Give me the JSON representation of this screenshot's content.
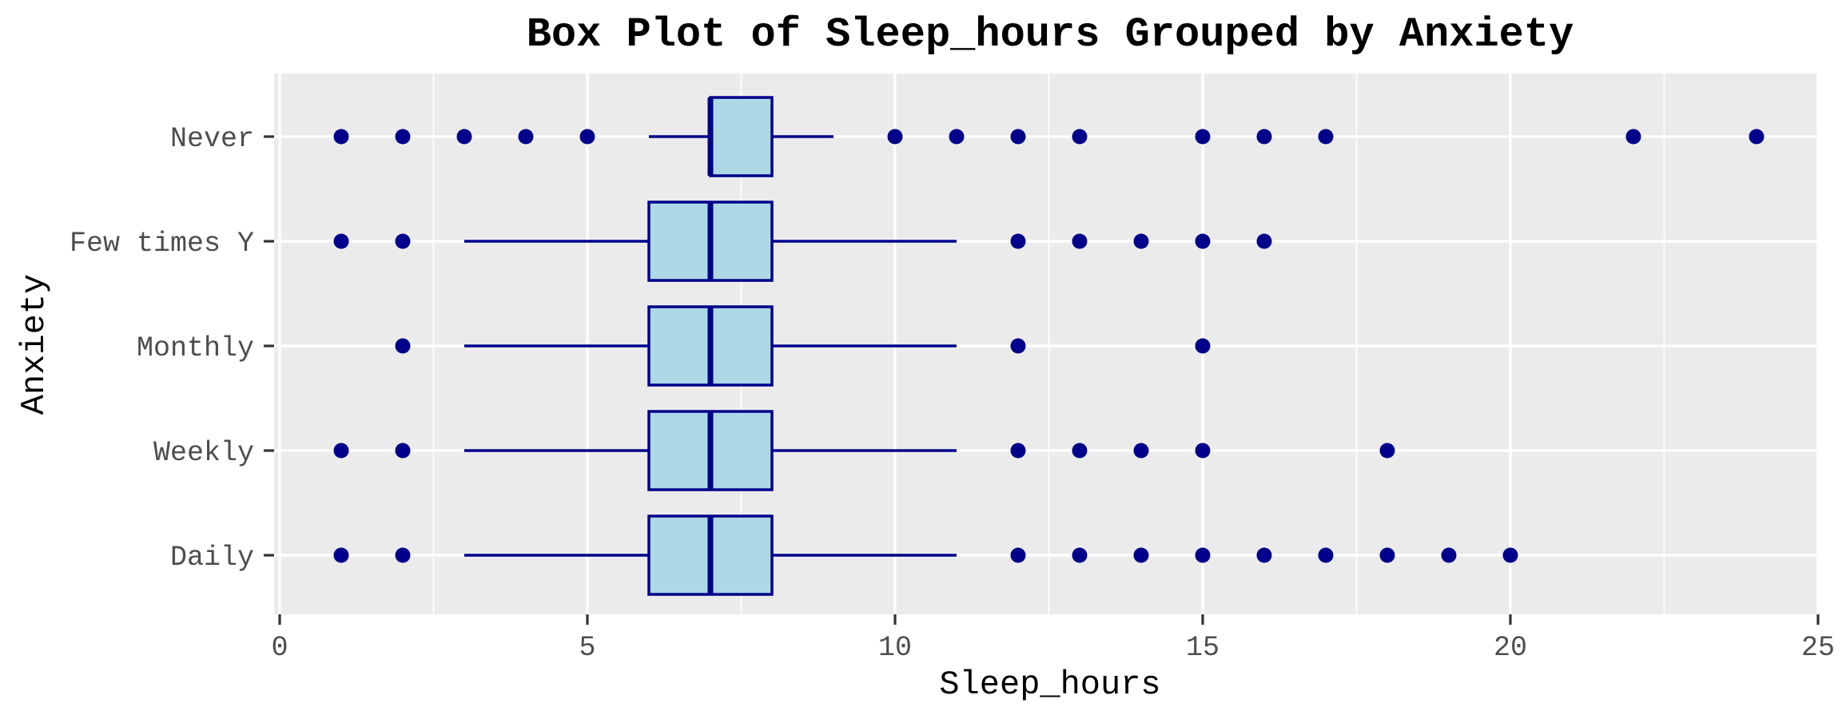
{
  "chart_data": {
    "type": "boxplot",
    "orientation": "horizontal",
    "title": "Box Plot of Sleep_hours Grouped by Anxiety",
    "xlabel": "Sleep_hours",
    "ylabel": "Anxiety",
    "xlim": [
      0,
      25
    ],
    "x_ticks": [
      0,
      5,
      10,
      15,
      20,
      25
    ],
    "grid": true,
    "legend": "none",
    "colors": {
      "panel_background": "#ebebeb",
      "gridline": "#ffffff",
      "box_fill": "#add8e6",
      "box_stroke": "#00008b",
      "outlier": "#00008b",
      "title_text": "#000000",
      "axis_text": "#4d4d4d",
      "tick_mark": "#333333"
    },
    "categories": [
      "Never",
      "Few times Y",
      "Monthly",
      "Weekly",
      "Daily"
    ],
    "series": [
      {
        "category": "Never",
        "whisker_low": 6,
        "q1": 7,
        "median": 7,
        "q3": 8,
        "whisker_high": 9,
        "outliers": [
          1,
          2,
          3,
          4,
          5,
          10,
          11,
          12,
          13,
          15,
          16,
          17,
          22,
          24
        ]
      },
      {
        "category": "Few times Y",
        "whisker_low": 3,
        "q1": 6,
        "median": 7,
        "q3": 8,
        "whisker_high": 11,
        "outliers": [
          1,
          2,
          12,
          13,
          14,
          15,
          16
        ]
      },
      {
        "category": "Monthly",
        "whisker_low": 3,
        "q1": 6,
        "median": 7,
        "q3": 8,
        "whisker_high": 11,
        "outliers": [
          2,
          12,
          15
        ]
      },
      {
        "category": "Weekly",
        "whisker_low": 3,
        "q1": 6,
        "median": 7,
        "q3": 8,
        "whisker_high": 11,
        "outliers": [
          1,
          2,
          12,
          13,
          14,
          15,
          18
        ]
      },
      {
        "category": "Daily",
        "whisker_low": 3,
        "q1": 6,
        "median": 7,
        "q3": 8,
        "whisker_high": 11,
        "outliers": [
          1,
          2,
          12,
          13,
          14,
          15,
          16,
          17,
          18,
          19,
          20
        ]
      }
    ]
  }
}
